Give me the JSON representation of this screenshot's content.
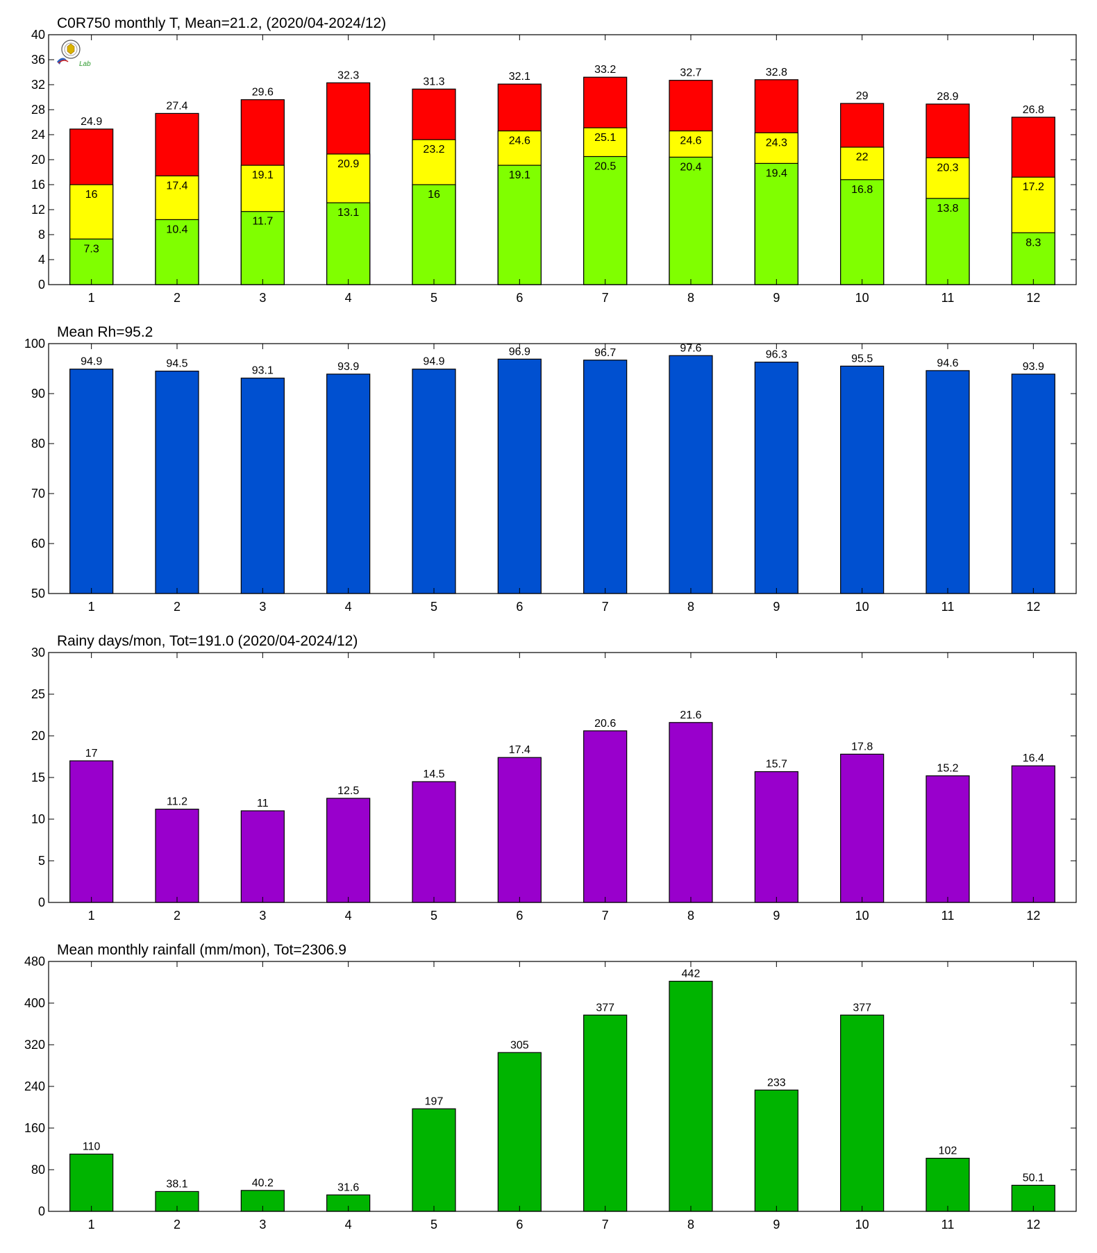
{
  "chart_data": [
    {
      "type": "bar",
      "stacked": "overlay",
      "title": "C0R750 monthly T, Mean=21.2, (2020/04-2024/12)",
      "categories": [
        "1",
        "2",
        "3",
        "4",
        "5",
        "6",
        "7",
        "8",
        "9",
        "10",
        "11",
        "12"
      ],
      "ylim": [
        0,
        40
      ],
      "yticks": [
        0,
        4,
        8,
        12,
        16,
        20,
        24,
        28,
        32,
        36,
        40
      ],
      "grid": false,
      "series": [
        {
          "color": "#ff0000",
          "values": [
            24.9,
            27.4,
            29.6,
            32.3,
            31.3,
            32.1,
            33.2,
            32.7,
            32.8,
            29,
            28.9,
            26.8
          ]
        },
        {
          "color": "#ffff00",
          "values": [
            16,
            17.4,
            19.1,
            20.9,
            23.2,
            24.6,
            25.1,
            24.6,
            24.3,
            22,
            20.3,
            17.2
          ]
        },
        {
          "color": "#80ff00",
          "values": [
            7.3,
            10.4,
            11.7,
            13.1,
            16,
            19.1,
            20.5,
            20.4,
            19.4,
            16.8,
            13.8,
            8.3
          ]
        }
      ]
    },
    {
      "type": "bar",
      "title": "Mean Rh=95.2",
      "categories": [
        "1",
        "2",
        "3",
        "4",
        "5",
        "6",
        "7",
        "8",
        "9",
        "10",
        "11",
        "12"
      ],
      "ylim": [
        50,
        100
      ],
      "yticks": [
        50,
        60,
        70,
        80,
        90,
        100
      ],
      "grid": false,
      "color": "#0050d0",
      "values": [
        94.9,
        94.5,
        93.1,
        93.9,
        94.9,
        96.9,
        96.7,
        97.6,
        96.3,
        95.5,
        94.6,
        93.9
      ]
    },
    {
      "type": "bar",
      "title": "Rainy days/mon, Tot=191.0 (2020/04-2024/12)",
      "categories": [
        "1",
        "2",
        "3",
        "4",
        "5",
        "6",
        "7",
        "8",
        "9",
        "10",
        "11",
        "12"
      ],
      "ylim": [
        0,
        30
      ],
      "yticks": [
        0,
        5,
        10,
        15,
        20,
        25,
        30
      ],
      "grid": false,
      "color": "#9900cc",
      "values": [
        17,
        11.2,
        11,
        12.5,
        14.5,
        17.4,
        20.6,
        21.6,
        15.7,
        17.8,
        15.2,
        16.4
      ]
    },
    {
      "type": "bar",
      "title": "Mean monthly rainfall (mm/mon), Tot=2306.9",
      "categories": [
        "1",
        "2",
        "3",
        "4",
        "5",
        "6",
        "7",
        "8",
        "9",
        "10",
        "11",
        "12"
      ],
      "ylim": [
        0,
        480
      ],
      "yticks": [
        0,
        80,
        160,
        240,
        320,
        400,
        480
      ],
      "grid": false,
      "color": "#00b400",
      "values": [
        110,
        38.1,
        40.2,
        31.6,
        197,
        305,
        377,
        442,
        233,
        377,
        102,
        50.1
      ]
    }
  ],
  "logo": {
    "name": "lab-logo",
    "text": "Lab"
  }
}
